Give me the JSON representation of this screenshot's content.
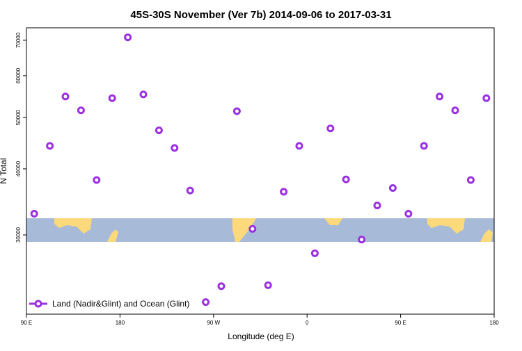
{
  "chart_data": {
    "type": "scatter",
    "title": "45S-30S November (Ver 7b)   2014-09-06 to 2017-03-31",
    "x_label": "Longitude (deg E)",
    "y_label": "N Total",
    "log_y": true,
    "xlim": [
      90,
      540
    ],
    "xticks": [
      {
        "value": 90,
        "label": "90 E"
      },
      180,
      {
        "value": 270,
        "label": "90 W"
      },
      {
        "value": 360,
        "label": "0"
      },
      {
        "value": 450,
        "label": "90 E"
      },
      {
        "value": 540,
        "label": "180"
      }
    ],
    "ylim": [
      21250,
      73900
    ],
    "yticks": [
      30000,
      40000,
      50000,
      60000,
      70000
    ],
    "legend": "bottom-left",
    "series": [
      {
        "name": "Land (Nadir&Glint) and Ocean (Glint)",
        "color": "#9b30e0",
        "x": [
          97.5,
          112.5,
          127.5,
          142.5,
          157.5,
          172.5,
          187.5,
          202.5,
          217.5,
          232.5,
          247.5,
          262.5,
          277.5,
          292.5,
          307.5,
          322.5,
          337.5,
          352.5,
          367.5,
          382.5,
          397.5,
          412.5,
          427.5,
          442.5,
          457.5,
          472.5,
          487.5,
          502.5,
          517.5,
          532.5
        ],
        "values": [
          32900,
          44200,
          54800,
          51600,
          38100,
          54400,
          70900,
          55300,
          47300,
          43800,
          36400,
          22400,
          24000,
          51400,
          30800,
          24100,
          36200,
          44200,
          27700,
          47700,
          38200,
          29400,
          34100,
          36800,
          32900,
          44200,
          54800,
          51600,
          38100,
          54400
        ]
      }
    ]
  }
}
